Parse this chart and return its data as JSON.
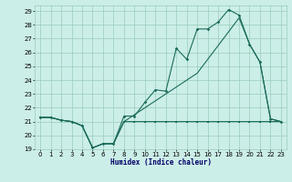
{
  "xlabel": "Humidex (Indice chaleur)",
  "bg_color": "#cceee8",
  "grid_color": "#99ccbb",
  "line_color": "#1a6b5a",
  "xlim": [
    -0.5,
    23.5
  ],
  "ylim": [
    19,
    29.4
  ],
  "xticks": [
    0,
    1,
    2,
    3,
    4,
    5,
    6,
    7,
    8,
    9,
    10,
    11,
    12,
    13,
    14,
    15,
    16,
    17,
    18,
    19,
    20,
    21,
    22,
    23
  ],
  "yticks": [
    19,
    20,
    21,
    22,
    23,
    24,
    25,
    26,
    27,
    28,
    29
  ],
  "series1_x": [
    0,
    1,
    2,
    3,
    4,
    5,
    6,
    7,
    8,
    9,
    10,
    11,
    12,
    13,
    14,
    15,
    16,
    17,
    18,
    19,
    20,
    21,
    22,
    23
  ],
  "series1_y": [
    21.3,
    21.3,
    21.1,
    21.0,
    20.7,
    19.1,
    19.4,
    19.4,
    21.0,
    21.0,
    21.0,
    21.0,
    21.0,
    21.0,
    21.0,
    21.0,
    21.0,
    21.0,
    21.0,
    21.0,
    21.0,
    21.0,
    21.0,
    21.0
  ],
  "series2_x": [
    0,
    1,
    2,
    3,
    4,
    5,
    6,
    7,
    8,
    9,
    10,
    11,
    12,
    13,
    14,
    15,
    16,
    17,
    18,
    19,
    20,
    21,
    22,
    23
  ],
  "series2_y": [
    21.3,
    21.3,
    21.1,
    21.0,
    20.7,
    19.1,
    19.4,
    19.4,
    21.4,
    21.4,
    22.4,
    23.3,
    23.2,
    26.3,
    25.5,
    27.7,
    27.7,
    28.2,
    29.1,
    28.7,
    26.6,
    25.3,
    21.2,
    21.0
  ],
  "series3_x": [
    0,
    1,
    2,
    3,
    4,
    5,
    6,
    7,
    8,
    9,
    10,
    11,
    12,
    13,
    14,
    15,
    16,
    17,
    18,
    19,
    20,
    21,
    22,
    23
  ],
  "series3_y": [
    21.3,
    21.3,
    21.1,
    21.0,
    20.7,
    19.1,
    19.4,
    19.4,
    21.0,
    21.5,
    22.0,
    22.5,
    23.0,
    23.5,
    24.0,
    24.5,
    25.5,
    26.5,
    27.5,
    28.5,
    26.6,
    25.3,
    21.2,
    21.0
  ]
}
